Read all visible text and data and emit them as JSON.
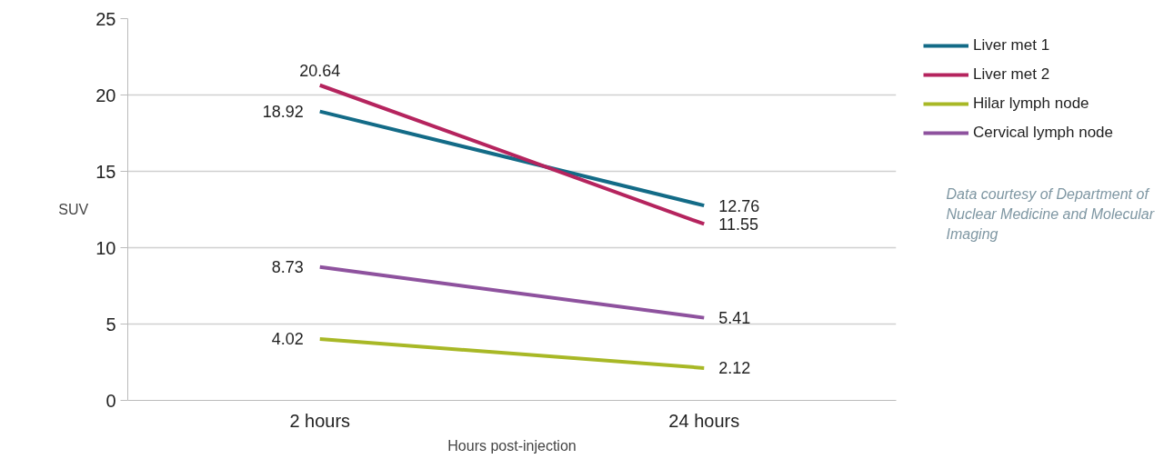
{
  "chart_data": {
    "type": "line",
    "xlabel": "Hours post-injection",
    "ylabel": "SUV",
    "categories": [
      "2 hours",
      "24 hours"
    ],
    "series": [
      {
        "name": "Liver met 1",
        "color": "#136b87",
        "values": [
          18.92,
          12.76
        ]
      },
      {
        "name": "Liver met 2",
        "color": "#b5245e",
        "values": [
          20.64,
          11.55
        ]
      },
      {
        "name": "Hilar lymph node",
        "color": "#a8b826",
        "values": [
          4.02,
          2.12
        ]
      },
      {
        "name": "Cervical lymph node",
        "color": "#8e529e",
        "values": [
          8.73,
          5.41
        ]
      }
    ],
    "ylim": [
      0,
      25
    ],
    "yticks": [
      0,
      5,
      10,
      15,
      20,
      25
    ],
    "grid": "y",
    "legend": "top right",
    "data_labels": true,
    "marker": "none",
    "line_style": "solid",
    "annotations": [
      "Data courtesy of Department of Nuclear Medicine and Molecular Imaging"
    ]
  }
}
